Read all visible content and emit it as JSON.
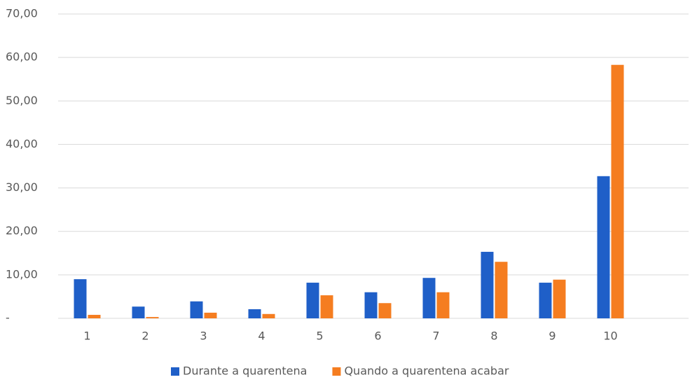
{
  "chart_data": {
    "type": "bar",
    "categories": [
      "1",
      "2",
      "3",
      "4",
      "5",
      "6",
      "7",
      "8",
      "9",
      "10"
    ],
    "series": [
      {
        "name": "Durante a quarentena",
        "color": "#1f5fc8",
        "values": [
          9.0,
          2.7,
          3.9,
          2.1,
          8.2,
          6.0,
          9.3,
          15.3,
          8.2,
          32.7
        ]
      },
      {
        "name": "Quando a quarentena acabar",
        "color": "#f57d20",
        "values": [
          0.8,
          0.3,
          1.3,
          1.0,
          5.3,
          3.5,
          6.0,
          13.0,
          8.9,
          58.3
        ]
      }
    ],
    "ylim": [
      0,
      70
    ],
    "yticks": [
      {
        "value": 0,
        "label": "-"
      },
      {
        "value": 10,
        "label": "10,00"
      },
      {
        "value": 20,
        "label": "20,00"
      },
      {
        "value": 30,
        "label": "30,00"
      },
      {
        "value": 40,
        "label": "40,00"
      },
      {
        "value": 50,
        "label": "50,00"
      },
      {
        "value": 60,
        "label": "60,00"
      },
      {
        "value": 70,
        "label": "70,00"
      }
    ],
    "grid": true,
    "legend": "bottom"
  }
}
